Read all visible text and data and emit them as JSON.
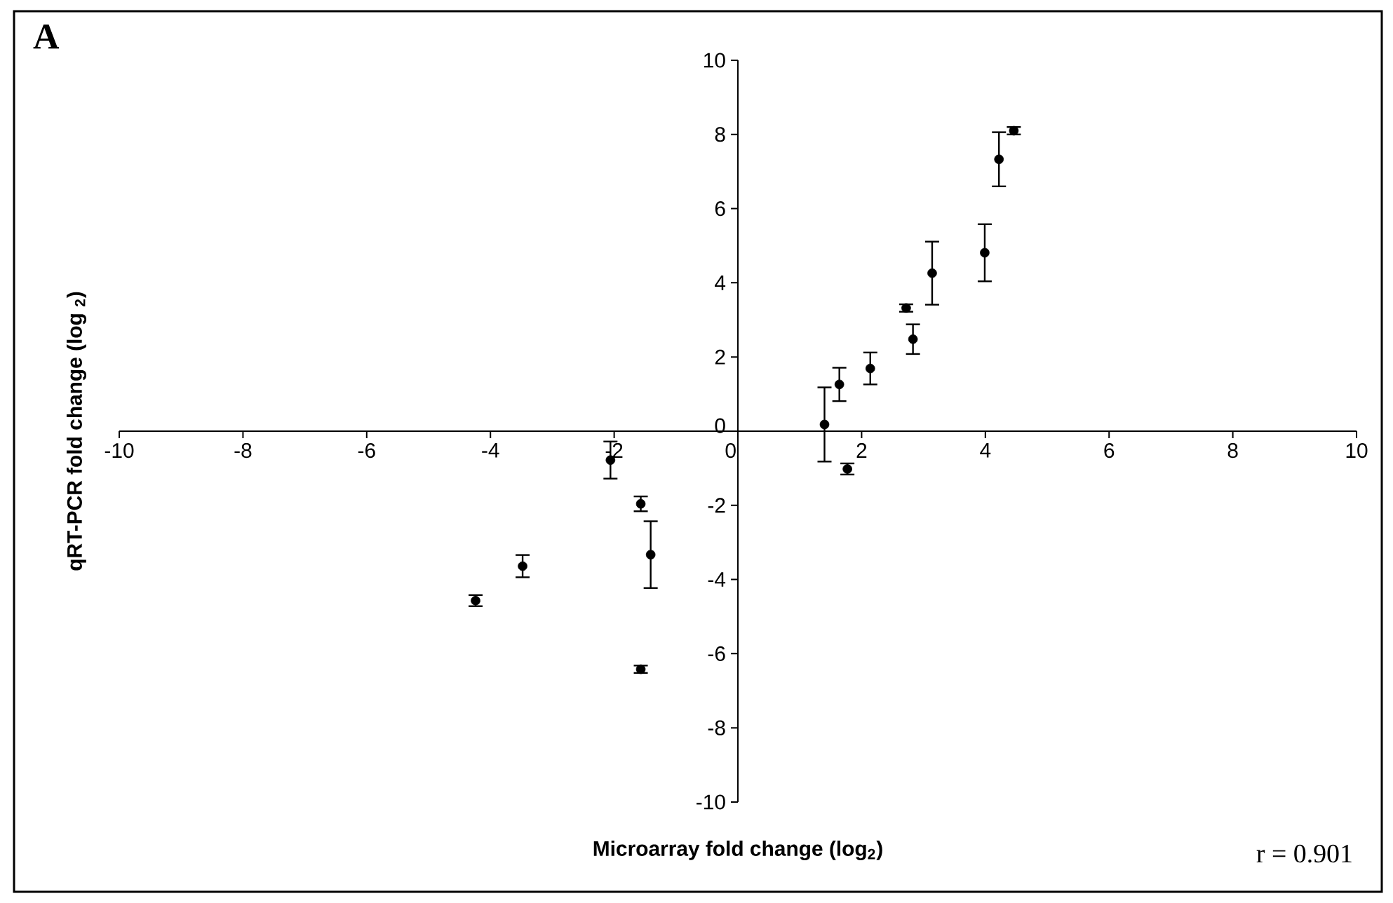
{
  "chart_data": {
    "type": "scatter",
    "xlabel": "Microarray fold change (log$_{2}$)",
    "ylabel": "qRT-PCR fold change (log $_{2}$)",
    "annotations": [
      "A",
      "r = 0.901"
    ],
    "x": [
      -4.24,
      -3.48,
      -2.06,
      -1.57,
      -1.41,
      -1.57,
      1.4,
      1.77,
      1.64,
      2.14,
      2.72,
      2.83,
      3.14,
      3.99,
      4.22,
      4.46
    ],
    "values": [
      -4.57,
      -3.64,
      -0.78,
      -1.96,
      -3.33,
      -6.42,
      0.18,
      -1.02,
      1.26,
      1.69,
      3.32,
      2.48,
      4.26,
      4.81,
      7.33,
      8.1
    ],
    "errors": [
      0.15,
      0.3,
      0.5,
      0.2,
      0.9,
      0.1,
      1.0,
      0.15,
      0.45,
      0.43,
      0.1,
      0.4,
      0.85,
      0.77,
      0.73,
      0.1
    ],
    "color": "#000000",
    "marker": "circle",
    "xlim": [
      -10,
      10
    ],
    "ylim": [
      -10,
      10
    ],
    "xticks": [
      -10,
      -8,
      -6,
      -4,
      -2,
      0,
      2,
      4,
      6,
      8,
      10
    ],
    "yticks": [
      -10,
      -8,
      -6,
      -4,
      -2,
      0,
      2,
      4,
      6,
      8,
      10
    ]
  }
}
